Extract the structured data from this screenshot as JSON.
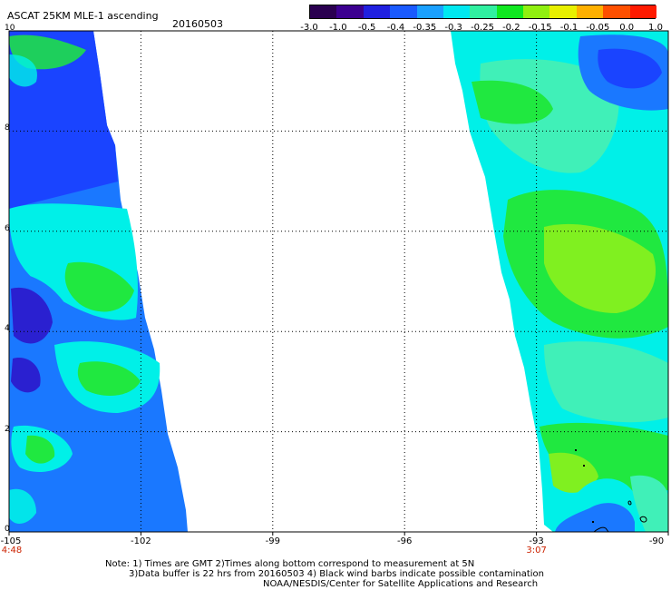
{
  "header": {
    "title": "ASCAT 25KM MLE-1 ascending",
    "date": "20160503"
  },
  "colorbar": {
    "labels": [
      "-3.0",
      "-1.0",
      "-0.5",
      "-0.4",
      "-0.35",
      "-0.3",
      "-0.25",
      "-0.2",
      "-0.15",
      "-0.1",
      "-0.05",
      "0.0",
      "1.0"
    ],
    "colors": [
      "#2a0050",
      "#3c0090",
      "#2020e0",
      "#1a5aff",
      "#1aa0ff",
      "#00e8f0",
      "#30f0a0",
      "#10e820",
      "#90f010",
      "#e8f000",
      "#ffb000",
      "#ff5000",
      "#ff1a00"
    ]
  },
  "map": {
    "y_axis": {
      "labels": [
        "10",
        "8",
        "6",
        "4",
        "2",
        "0"
      ],
      "values": [
        10,
        8,
        6,
        4,
        2,
        0
      ]
    },
    "x_axis": {
      "labels": [
        "-105",
        "-102",
        "-99",
        "-96",
        "-93",
        "-90"
      ],
      "values": [
        -105,
        -102,
        -99,
        -96,
        -93,
        -90
      ]
    },
    "lon_range": [
      -105,
      -90
    ],
    "lat_range": [
      0,
      10
    ],
    "pass_times": [
      {
        "label": "4:48",
        "lon": -105,
        "color": "#cc2200"
      },
      {
        "label": "3:07",
        "lon": -93,
        "color": "#cc2200"
      }
    ],
    "colors": {
      "deep_blue": "#1a44ff",
      "blue": "#1a78ff",
      "indigo": "#2a20d0",
      "cyan": "#00f0e8",
      "aqua": "#40f0b8",
      "green": "#20e840",
      "lime": "#80f020"
    }
  },
  "notes": {
    "line1": "Note: 1) Times are GMT 2)Times along bottom correspond to measurement at 5N",
    "line2": "3)Data buffer is 22 hrs from 20160503 4) Black wind barbs indicate possible contamination",
    "line3": "NOAA/NESDIS/Center for Satellite Applications and Research"
  }
}
